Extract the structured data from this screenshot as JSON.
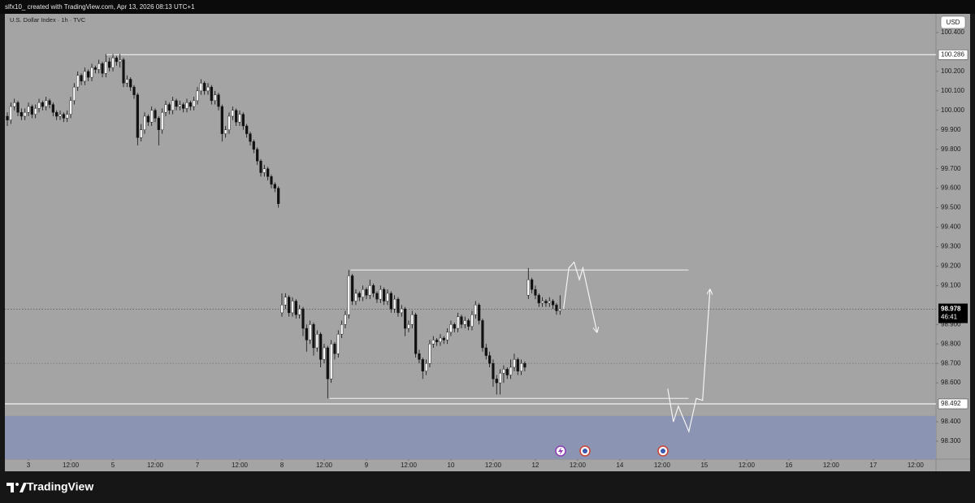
{
  "chart_data": {
    "type": "candlestick",
    "header": "slfx10_ created with TradingView.com, Apr 13, 2026 08:13 UTC+1",
    "title": "U.S. Dollar Index · 1h · TVC",
    "currency": "USD",
    "footer": "TradingView",
    "xlim": [
      -0.7,
      263.8
    ],
    "ylim": [
      98.208,
      100.492
    ],
    "xticks": [
      {
        "value": 6,
        "label": "3"
      },
      {
        "value": 18,
        "label": "12:00"
      },
      {
        "value": 30,
        "label": "5"
      },
      {
        "value": 42,
        "label": "12:00"
      },
      {
        "value": 54,
        "label": "7"
      },
      {
        "value": 66,
        "label": "12:00"
      },
      {
        "value": 78,
        "label": "8"
      },
      {
        "value": 90,
        "label": "12:00"
      },
      {
        "value": 102,
        "label": "9"
      },
      {
        "value": 114,
        "label": "12:00"
      },
      {
        "value": 126,
        "label": "10"
      },
      {
        "value": 138,
        "label": "12:00"
      },
      {
        "value": 150,
        "label": "12"
      },
      {
        "value": 162,
        "label": "12:00"
      },
      {
        "value": 174,
        "label": "14"
      },
      {
        "value": 186,
        "label": "12:00"
      },
      {
        "value": 198,
        "label": "15"
      },
      {
        "value": 210,
        "label": "12:00"
      },
      {
        "value": 222,
        "label": "16"
      },
      {
        "value": 234,
        "label": "12:00"
      },
      {
        "value": 246,
        "label": "17"
      },
      {
        "value": 258,
        "label": "12:00"
      }
    ],
    "yticks": [
      {
        "value": 100.4,
        "label": "100.400"
      },
      {
        "value": 100.2,
        "label": "100.200"
      },
      {
        "value": 100.1,
        "label": "100.100"
      },
      {
        "value": 100,
        "label": "100.000"
      },
      {
        "value": 99.9,
        "label": "99.900"
      },
      {
        "value": 99.8,
        "label": "99.800"
      },
      {
        "value": 99.7,
        "label": "99.700"
      },
      {
        "value": 99.6,
        "label": "99.600"
      },
      {
        "value": 99.5,
        "label": "99.500"
      },
      {
        "value": 99.4,
        "label": "99.400"
      },
      {
        "value": 99.3,
        "label": "99.300"
      },
      {
        "value": 99.2,
        "label": "99.200"
      },
      {
        "value": 99.1,
        "label": "99.100"
      },
      {
        "value": 98.9,
        "label": "98.900"
      },
      {
        "value": 98.8,
        "label": "98.800"
      },
      {
        "value": 98.7,
        "label": "98.700"
      },
      {
        "value": 98.6,
        "label": "98.600"
      },
      {
        "value": 98.4,
        "label": "98.400"
      },
      {
        "value": 98.3,
        "label": "98.300"
      }
    ],
    "up_color": "#ffffff",
    "down_color": "#111111",
    "candles": [
      [
        99.97,
        99.99,
        99.92,
        99.95
      ],
      [
        99.95,
        100.04,
        99.93,
        100.02
      ],
      [
        100.02,
        100.06,
        100.0,
        100.04
      ],
      [
        100.04,
        100.05,
        99.97,
        99.99
      ],
      [
        99.99,
        100.01,
        99.95,
        99.97
      ],
      [
        99.97,
        100.01,
        99.95,
        99.99
      ],
      [
        99.99,
        100.04,
        99.97,
        100.02
      ],
      [
        100.02,
        100.03,
        99.96,
        99.98
      ],
      [
        99.98,
        100.03,
        99.96,
        100.01
      ],
      [
        100.01,
        100.06,
        99.99,
        100.04
      ],
      [
        100.04,
        100.05,
        100.0,
        100.02
      ],
      [
        100.02,
        100.07,
        100.0,
        100.05
      ],
      [
        100.05,
        100.06,
        100.01,
        100.03
      ],
      [
        100.03,
        100.04,
        99.97,
        99.99
      ],
      [
        99.99,
        100.0,
        99.95,
        99.97
      ],
      [
        99.97,
        100.0,
        99.95,
        99.98
      ],
      [
        99.98,
        99.99,
        99.94,
        99.96
      ],
      [
        99.96,
        100.0,
        99.94,
        99.98
      ],
      [
        99.98,
        100.07,
        99.96,
        100.05
      ],
      [
        100.05,
        100.14,
        100.03,
        100.12
      ],
      [
        100.12,
        100.2,
        100.1,
        100.18
      ],
      [
        100.18,
        100.19,
        100.13,
        100.15
      ],
      [
        100.15,
        100.22,
        100.13,
        100.2
      ],
      [
        100.2,
        100.21,
        100.15,
        100.17
      ],
      [
        100.17,
        100.24,
        100.15,
        100.22
      ],
      [
        100.22,
        100.23,
        100.19,
        100.21
      ],
      [
        100.21,
        100.26,
        100.19,
        100.24
      ],
      [
        100.24,
        100.25,
        100.17,
        100.19
      ],
      [
        100.19,
        100.29,
        100.17,
        100.25
      ],
      [
        100.25,
        100.27,
        100.2,
        100.22
      ],
      [
        100.22,
        100.29,
        100.2,
        100.27
      ],
      [
        100.27,
        100.28,
        100.23,
        100.25
      ],
      [
        100.25,
        100.29,
        100.22,
        100.26
      ],
      [
        100.26,
        100.27,
        100.12,
        100.14
      ],
      [
        100.14,
        100.18,
        100.12,
        100.16
      ],
      [
        100.16,
        100.17,
        100.1,
        100.12
      ],
      [
        100.12,
        100.13,
        100.06,
        100.08
      ],
      [
        100.08,
        100.09,
        99.82,
        99.86
      ],
      [
        99.86,
        99.93,
        99.84,
        99.9
      ],
      [
        99.9,
        99.99,
        99.88,
        99.97
      ],
      [
        99.97,
        99.98,
        99.92,
        99.94
      ],
      [
        99.94,
        100.02,
        99.92,
        100.0
      ],
      [
        100.0,
        100.01,
        99.94,
        99.96
      ],
      [
        99.96,
        99.97,
        99.82,
        99.9
      ],
      [
        99.9,
        100.01,
        99.88,
        99.99
      ],
      [
        99.99,
        100.05,
        99.97,
        100.03
      ],
      [
        100.03,
        100.04,
        99.98,
        100.0
      ],
      [
        100.0,
        100.07,
        99.98,
        100.05
      ],
      [
        100.05,
        100.06,
        100.0,
        100.02
      ],
      [
        100.02,
        100.05,
        100.0,
        100.03
      ],
      [
        100.03,
        100.04,
        99.99,
        100.01
      ],
      [
        100.01,
        100.06,
        99.99,
        100.04
      ],
      [
        100.04,
        100.05,
        100.0,
        100.02
      ],
      [
        100.02,
        100.07,
        100.0,
        100.05
      ],
      [
        100.05,
        100.12,
        100.03,
        100.1
      ],
      [
        100.1,
        100.16,
        100.08,
        100.14
      ],
      [
        100.14,
        100.15,
        100.08,
        100.1
      ],
      [
        100.1,
        100.14,
        100.08,
        100.12
      ],
      [
        100.12,
        100.13,
        100.03,
        100.05
      ],
      [
        100.05,
        100.1,
        100.03,
        100.08
      ],
      [
        100.08,
        100.09,
        100.0,
        100.02
      ],
      [
        100.02,
        100.03,
        99.84,
        99.88
      ],
      [
        99.88,
        99.92,
        99.86,
        99.9
      ],
      [
        99.9,
        99.99,
        99.88,
        99.97
      ],
      [
        99.97,
        100.02,
        99.95,
        100.0
      ],
      [
        100.0,
        100.01,
        99.92,
        99.94
      ],
      [
        99.94,
        100.0,
        99.92,
        99.98
      ],
      [
        99.98,
        99.99,
        99.9,
        99.92
      ],
      [
        99.92,
        99.93,
        99.86,
        99.88
      ],
      [
        99.88,
        99.89,
        99.82,
        99.84
      ],
      [
        99.84,
        99.85,
        99.78,
        99.8
      ],
      [
        99.8,
        99.81,
        99.72,
        99.74
      ],
      [
        99.74,
        99.75,
        99.66,
        99.68
      ],
      [
        99.68,
        99.72,
        99.66,
        99.7
      ],
      [
        99.7,
        99.71,
        99.64,
        99.66
      ],
      [
        99.66,
        99.67,
        99.6,
        99.62
      ],
      [
        99.62,
        99.63,
        99.58,
        99.6
      ],
      [
        99.6,
        99.61,
        99.5,
        99.52
      ],
      [
        98.96,
        99.06,
        98.94,
        99.0
      ],
      [
        99.0,
        99.06,
        98.98,
        99.04
      ],
      [
        99.04,
        99.05,
        98.94,
        98.96
      ],
      [
        98.96,
        99.04,
        98.94,
        99.02
      ],
      [
        99.02,
        99.03,
        98.93,
        98.95
      ],
      [
        98.95,
        99.0,
        98.93,
        98.98
      ],
      [
        98.98,
        98.99,
        98.84,
        98.88
      ],
      [
        98.88,
        98.9,
        98.76,
        98.82
      ],
      [
        98.82,
        98.92,
        98.8,
        98.9
      ],
      [
        98.9,
        98.91,
        98.74,
        98.78
      ],
      [
        98.78,
        98.87,
        98.76,
        98.85
      ],
      [
        98.85,
        98.86,
        98.68,
        98.72
      ],
      [
        98.72,
        98.8,
        98.7,
        98.78
      ],
      [
        98.78,
        98.79,
        98.52,
        98.62
      ],
      [
        98.62,
        98.82,
        98.6,
        98.8
      ],
      [
        98.8,
        98.81,
        98.72,
        98.75
      ],
      [
        98.75,
        98.87,
        98.73,
        98.85
      ],
      [
        98.85,
        98.92,
        98.83,
        98.9
      ],
      [
        98.9,
        98.97,
        98.88,
        98.95
      ],
      [
        98.95,
        99.18,
        98.93,
        99.15
      ],
      [
        99.15,
        99.16,
        99.0,
        99.02
      ],
      [
        99.02,
        99.08,
        99.0,
        99.06
      ],
      [
        99.06,
        99.07,
        99.02,
        99.04
      ],
      [
        99.04,
        99.1,
        99.02,
        99.08
      ],
      [
        99.08,
        99.09,
        99.03,
        99.05
      ],
      [
        99.05,
        99.13,
        99.03,
        99.1
      ],
      [
        99.1,
        99.11,
        99.04,
        99.06
      ],
      [
        99.06,
        99.07,
        99.01,
        99.03
      ],
      [
        99.03,
        99.1,
        99.01,
        99.08
      ],
      [
        99.08,
        99.09,
        99.0,
        99.02
      ],
      [
        99.02,
        99.08,
        99.0,
        99.06
      ],
      [
        99.06,
        99.07,
        98.96,
        98.98
      ],
      [
        98.98,
        99.05,
        98.96,
        99.03
      ],
      [
        99.03,
        99.04,
        98.94,
        98.96
      ],
      [
        98.96,
        99.0,
        98.94,
        98.98
      ],
      [
        98.98,
        98.99,
        98.84,
        98.88
      ],
      [
        98.88,
        98.92,
        98.86,
        98.9
      ],
      [
        98.9,
        98.97,
        98.88,
        98.95
      ],
      [
        98.95,
        98.96,
        98.73,
        98.75
      ],
      [
        98.75,
        98.77,
        98.7,
        98.72
      ],
      [
        98.72,
        98.73,
        98.62,
        98.66
      ],
      [
        98.66,
        98.72,
        98.64,
        98.7
      ],
      [
        98.7,
        98.82,
        98.68,
        98.8
      ],
      [
        98.8,
        98.84,
        98.78,
        98.82
      ],
      [
        98.82,
        98.83,
        98.79,
        98.81
      ],
      [
        98.81,
        98.85,
        98.79,
        98.83
      ],
      [
        98.83,
        98.84,
        98.8,
        98.82
      ],
      [
        98.82,
        98.88,
        98.8,
        98.86
      ],
      [
        98.86,
        98.92,
        98.84,
        98.9
      ],
      [
        98.9,
        98.91,
        98.86,
        98.88
      ],
      [
        98.88,
        98.96,
        98.86,
        98.94
      ],
      [
        98.94,
        98.95,
        98.88,
        98.9
      ],
      [
        98.9,
        98.94,
        98.88,
        98.92
      ],
      [
        98.92,
        98.93,
        98.87,
        98.89
      ],
      [
        98.89,
        98.97,
        98.87,
        98.95
      ],
      [
        98.95,
        99.02,
        98.93,
        99.0
      ],
      [
        99.0,
        99.01,
        98.9,
        98.92
      ],
      [
        98.92,
        98.93,
        98.76,
        98.78
      ],
      [
        98.78,
        98.8,
        98.72,
        98.74
      ],
      [
        98.74,
        98.76,
        98.68,
        98.7
      ],
      [
        98.7,
        98.72,
        98.58,
        98.62
      ],
      [
        98.62,
        98.64,
        98.54,
        98.6
      ],
      [
        98.6,
        98.67,
        98.54,
        98.65
      ],
      [
        98.65,
        98.69,
        98.6,
        98.67
      ],
      [
        98.67,
        98.68,
        98.62,
        98.64
      ],
      [
        98.64,
        98.72,
        98.62,
        98.68
      ],
      [
        98.68,
        98.75,
        98.66,
        98.72
      ],
      [
        98.72,
        98.73,
        98.64,
        98.66
      ],
      [
        98.66,
        98.72,
        98.64,
        98.7
      ],
      [
        98.7,
        98.71,
        98.66,
        98.68
      ],
      [
        99.05,
        99.19,
        99.03,
        99.13
      ],
      [
        99.13,
        99.14,
        99.06,
        99.08
      ],
      [
        99.08,
        99.1,
        99.03,
        99.05
      ],
      [
        99.05,
        99.06,
        98.99,
        99.01
      ],
      [
        99.01,
        99.04,
        98.99,
        99.02
      ],
      [
        99.02,
        99.03,
        98.99,
        99.01
      ],
      [
        99.01,
        99.04,
        98.99,
        99.02
      ],
      [
        99.02,
        99.03,
        98.98,
        99.0
      ],
      [
        99.0,
        99.01,
        98.95,
        98.97
      ],
      [
        98.97,
        99.05,
        98.95,
        98.98
      ]
    ],
    "levels": [
      {
        "value": 100.286,
        "from": 28,
        "style": "solid",
        "axis_label": true
      },
      {
        "value": 98.492,
        "style": "solid",
        "axis_label": true
      },
      {
        "value": 98.7,
        "style": "dotted"
      }
    ],
    "last_price": {
      "value": 98.978,
      "countdown": "46:41"
    },
    "segments": [
      {
        "y": 99.18,
        "x": [
          97.5,
          193.5
        ]
      },
      {
        "y": 98.52,
        "x": [
          91.5,
          193.5
        ]
      }
    ],
    "zone": {
      "top": 98.43,
      "color": "#8b94b2"
    },
    "projections": [
      {
        "x": [
          158,
          159.5,
          161,
          162.5,
          163.5,
          167.5
        ],
        "y": [
          98.98,
          99.19,
          99.22,
          99.13,
          99.19,
          98.86
        ]
      },
      {
        "x": [
          187.6,
          189.2,
          190.6,
          193.6,
          195.7,
          197.5,
          199.6
        ],
        "y": [
          98.57,
          98.4,
          98.48,
          98.35,
          98.52,
          98.51,
          99.08
        ]
      }
    ]
  }
}
